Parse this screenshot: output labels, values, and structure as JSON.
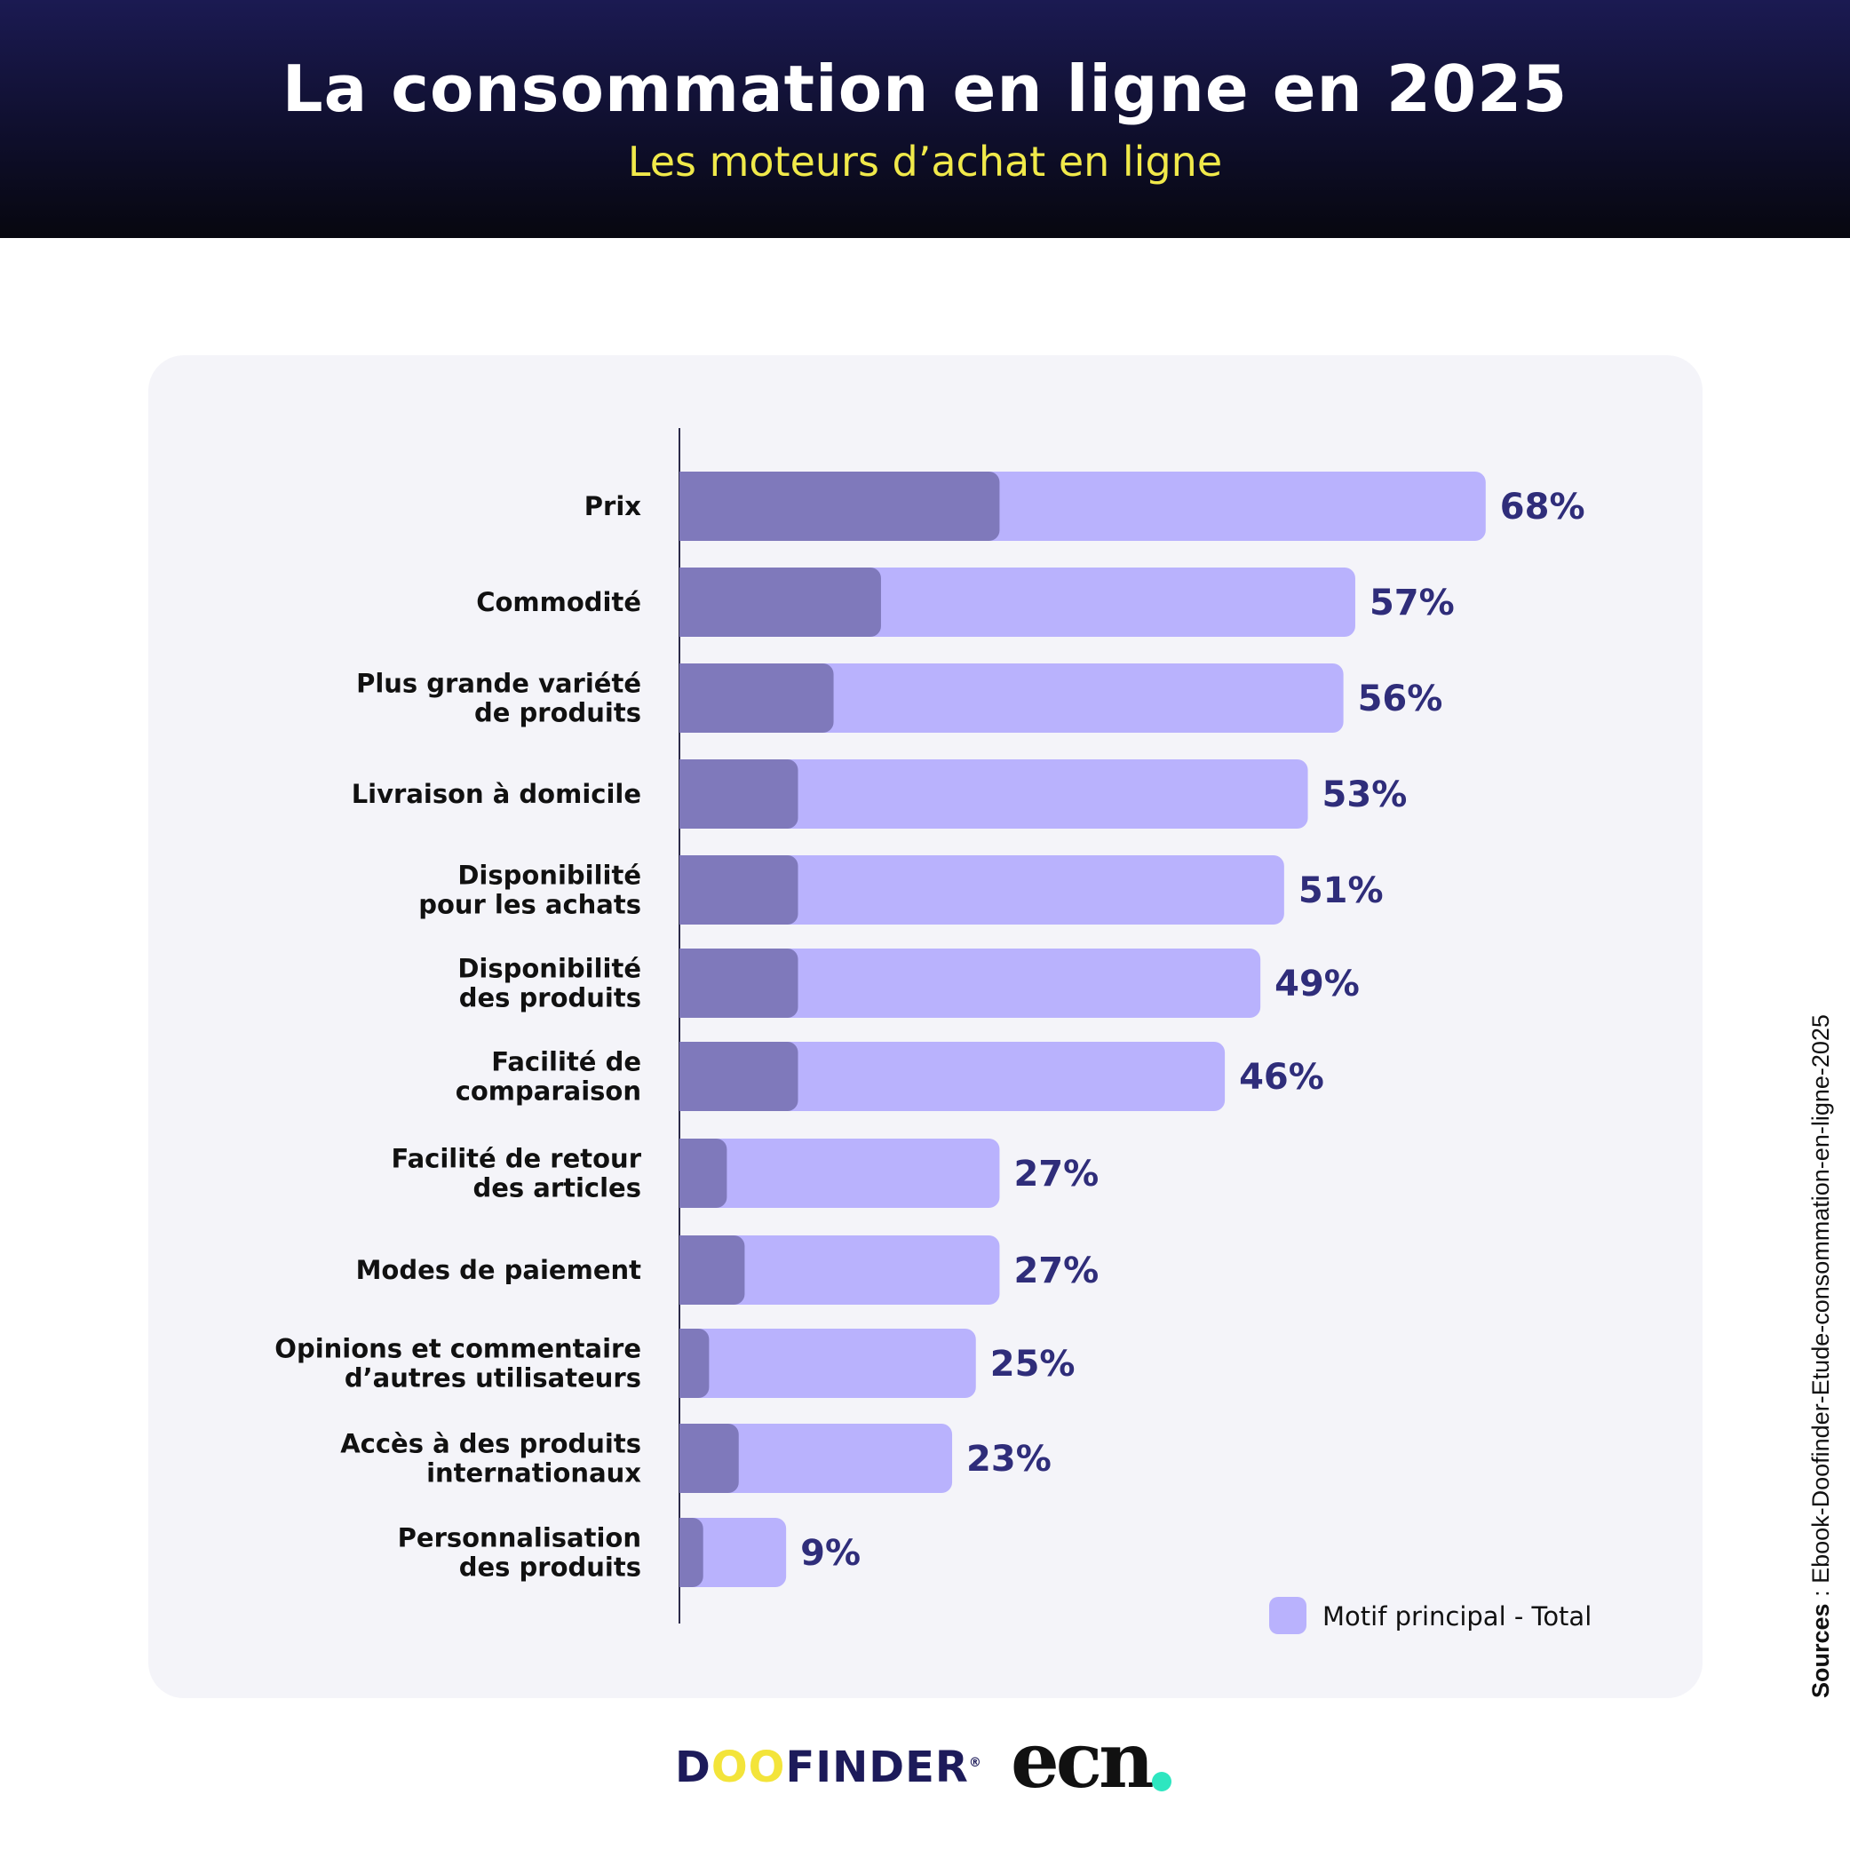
{
  "header": {
    "title": "La consommation en ligne en 2025",
    "subtitle": "Les moteurs d’achat en ligne"
  },
  "colors": {
    "total": "#b9b2fd",
    "principal": "#7f79bb",
    "value_label": "#2f2d7a",
    "header_bg": "#0e0e2a",
    "subtitle": "#f0e94a"
  },
  "chart_data": {
    "type": "bar",
    "orientation": "horizontal",
    "title": "Les moteurs d’achat en ligne",
    "categories": [
      [
        "Prix"
      ],
      [
        "Commodité"
      ],
      [
        "Plus grande variété",
        "de produits"
      ],
      [
        "Livraison à domicile"
      ],
      [
        "Disponibilité",
        "pour les achats"
      ],
      [
        "Disponibilité",
        "des produits"
      ],
      [
        "Facilité de",
        "comparaison"
      ],
      [
        "Facilité de retour",
        "des articles"
      ],
      [
        "Modes de paiement"
      ],
      [
        "Opinions et commentaire",
        "d’autres utilisateurs"
      ],
      [
        "Accès à des produits",
        "internationaux"
      ],
      [
        "Personnalisation",
        "des produits"
      ]
    ],
    "series": [
      {
        "name": "Total",
        "values": [
          68,
          57,
          56,
          53,
          51,
          49,
          46,
          27,
          27,
          25,
          23,
          9
        ]
      },
      {
        "name": "Motif principal",
        "values": [
          27,
          17,
          13,
          10,
          10,
          10,
          10,
          4,
          5.5,
          2.5,
          5,
          2
        ]
      }
    ],
    "value_labels": [
      "68%",
      "57%",
      "56%",
      "53%",
      "51%",
      "49%",
      "46%",
      "27%",
      "27%",
      "25%",
      "23%",
      "9%"
    ],
    "xlim": [
      0,
      100
    ],
    "legend": {
      "label": "Motif principal - Total",
      "position": "bottom-right"
    }
  },
  "source": {
    "label": "Sources",
    "text": " : Ebook-Doofinder-Etude-consommation-en-ligne-2025"
  },
  "logos": {
    "doofinder_d": "D",
    "doofinder_oo": "OO",
    "doofinder_rest": "FINDER",
    "doofinder_mark": "®",
    "ecn": "ecn"
  }
}
